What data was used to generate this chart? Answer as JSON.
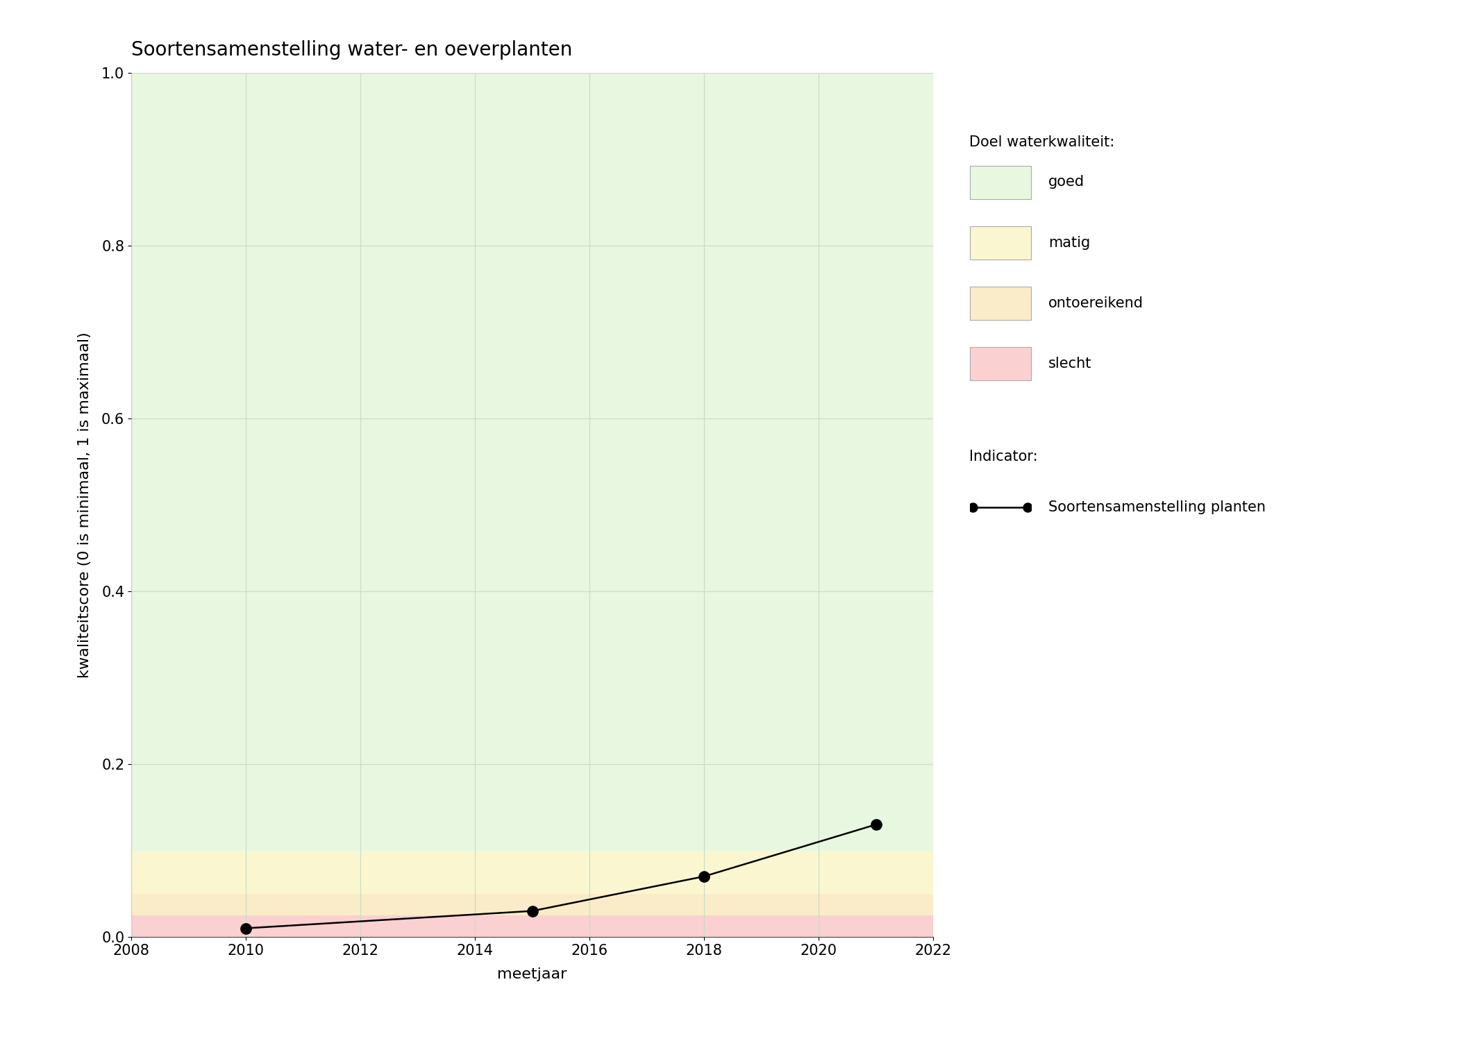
{
  "title": "Soortensamenstelling water- en oeverplanten",
  "xlabel": "meetjaar",
  "ylabel": "kwaliteitscore (0 is minimaal, 1 is maximaal)",
  "xlim": [
    2008,
    2022
  ],
  "ylim": [
    0.0,
    1.0
  ],
  "xticks": [
    2008,
    2010,
    2012,
    2014,
    2016,
    2018,
    2020,
    2022
  ],
  "yticks": [
    0.0,
    0.2,
    0.4,
    0.6,
    0.8,
    1.0
  ],
  "data_years": [
    2010,
    2015,
    2018,
    2021
  ],
  "data_values": [
    0.01,
    0.03,
    0.07,
    0.13
  ],
  "line_color": "#000000",
  "marker": "o",
  "markersize": 11,
  "linewidth": 1.8,
  "background_color": "#ffffff",
  "bands": [
    {
      "label": "goed",
      "ymin": 0.1,
      "ymax": 1.0,
      "color": "#e8f8e0"
    },
    {
      "label": "matig",
      "ymin": 0.05,
      "ymax": 0.1,
      "color": "#faf7d0"
    },
    {
      "label": "ontoereikend",
      "ymin": 0.025,
      "ymax": 0.05,
      "color": "#faecc8"
    },
    {
      "label": "slecht",
      "ymin": 0.0,
      "ymax": 0.025,
      "color": "#fad0d0"
    }
  ],
  "legend_title1": "Doel waterkwaliteit:",
  "legend_title2": "Indicator:",
  "legend_indicator_label": "Soortensamenstelling planten",
  "grid_color": "#c8ddc8",
  "title_fontsize": 20,
  "label_fontsize": 16,
  "tick_fontsize": 15,
  "legend_fontsize": 15,
  "legend_title_fontsize": 15
}
